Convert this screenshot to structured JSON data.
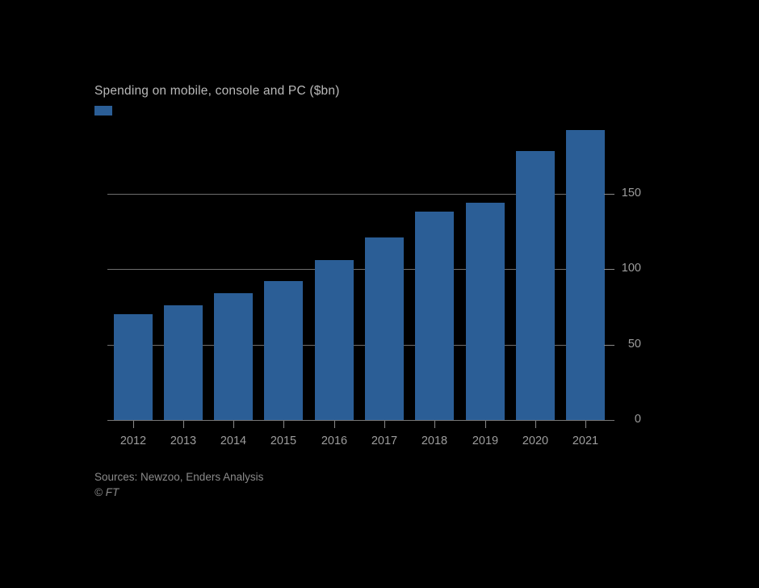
{
  "title": "Spending on mobile, console and PC ($bn)",
  "source_line": "Sources: Newzoo, Enders Analysis",
  "credit": "© FT",
  "colors": {
    "background": "#000000",
    "bar": "#2b5e96",
    "grid": "#6e6e6e",
    "axis": "#777777",
    "title_text": "#b9b9b9",
    "tick_text": "#9d9d9d",
    "source_text": "#8b8b8b"
  },
  "chart_data": {
    "type": "bar",
    "title": "Spending on mobile, console and PC ($bn)",
    "categories": [
      "2012",
      "2013",
      "2014",
      "2015",
      "2016",
      "2017",
      "2018",
      "2019",
      "2020",
      "2021"
    ],
    "values": [
      70,
      76,
      84,
      92,
      106,
      121,
      138,
      144,
      178,
      192
    ],
    "xlabel": "",
    "ylabel": "",
    "ylim": [
      0,
      195
    ],
    "yticks": [
      0,
      50,
      100,
      150
    ],
    "y_axis_side": "right",
    "grid": "horizontal",
    "legend_position": "top-left",
    "legend_entries": [
      ""
    ]
  }
}
